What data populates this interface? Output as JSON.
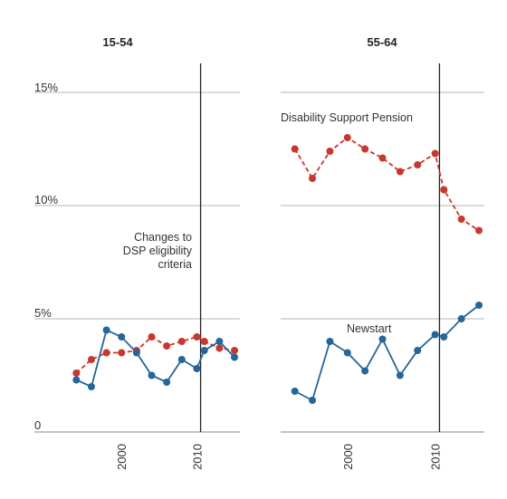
{
  "chart_data": {
    "type": "line",
    "colors": {
      "dsp": "#c8372d",
      "newstart": "#24659a"
    },
    "y_ticks": [
      "15%",
      "10%",
      "5%",
      "0"
    ],
    "y_tick_values": [
      15,
      10,
      5,
      0
    ],
    "ylim": [
      0,
      15
    ],
    "xlim": [
      1993,
      2015
    ],
    "x_ticks": [
      "2000",
      "2010"
    ],
    "x_tick_values": [
      2000,
      2010
    ],
    "event_year": 2010.5,
    "panels": [
      {
        "title": "15-54",
        "annotation": "Changes to\nDSP eligibility\ncriteria",
        "series": [
          {
            "key": "dsp",
            "x": [
              1994,
              1996,
              1998,
              2000,
              2002,
              2004,
              2006,
              2008,
              2010,
              2011,
              2013,
              2015
            ],
            "values": [
              2.6,
              3.2,
              3.5,
              3.5,
              3.6,
              4.2,
              3.8,
              4.0,
              4.2,
              4.0,
              3.7,
              3.6
            ]
          },
          {
            "key": "newstart",
            "x": [
              1994,
              1996,
              1998,
              2000,
              2002,
              2004,
              2006,
              2008,
              2010,
              2011,
              2013,
              2015
            ],
            "values": [
              2.3,
              2.0,
              4.5,
              4.2,
              3.5,
              2.5,
              2.2,
              3.2,
              2.8,
              3.6,
              4.0,
              3.3
            ]
          }
        ]
      },
      {
        "title": "55-64",
        "labels": {
          "dsp": "Disability Support Pension",
          "newstart": "Newstart"
        },
        "series": [
          {
            "key": "dsp",
            "x": [
              1994,
              1996,
              1998,
              2000,
              2002,
              2004,
              2006,
              2008,
              2010,
              2011,
              2013,
              2015
            ],
            "values": [
              12.5,
              11.2,
              12.4,
              13.0,
              12.5,
              12.1,
              11.5,
              11.8,
              12.3,
              10.7,
              9.4,
              8.9
            ]
          },
          {
            "key": "newstart",
            "x": [
              1994,
              1996,
              1998,
              2000,
              2002,
              2004,
              2006,
              2008,
              2010,
              2011,
              2013,
              2015
            ],
            "values": [
              1.8,
              1.4,
              4.0,
              3.5,
              2.7,
              4.1,
              2.5,
              3.6,
              4.3,
              4.2,
              5.0,
              5.6
            ]
          }
        ]
      }
    ]
  }
}
